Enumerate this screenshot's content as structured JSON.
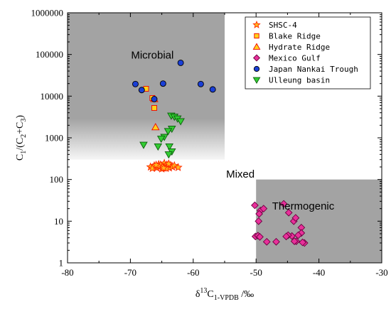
{
  "chart_data": {
    "type": "scatter",
    "xlabel": {
      "delta": "δ",
      "sup": "13",
      "c": "C",
      "sub": "1-VPDB",
      "unit": " /‰"
    },
    "ylabel": {
      "c1": "C",
      "s1": "1",
      "mid": "/(C",
      "s2": "2",
      "plus": "+C",
      "s3": "3",
      "close": ")"
    },
    "xlim": [
      -80,
      -30
    ],
    "ylim": [
      1,
      1000000
    ],
    "y_scale": "log",
    "x_ticks": [
      "-80",
      "-70",
      "-60",
      "-50",
      "-40",
      "-30"
    ],
    "y_ticks": [
      "1",
      "10",
      "100",
      "1000",
      "10000",
      "100000",
      "1000000"
    ],
    "grid": false,
    "legend_position": "top-right",
    "regions": [
      {
        "name": "Microbial",
        "x": [
          -80,
          -55
        ],
        "y": [
          300,
          1000000
        ],
        "color": "#a3a3a3",
        "fade_bottom": true
      },
      {
        "name": "Thermogenic",
        "x": [
          -50,
          -30
        ],
        "y": [
          1,
          100
        ],
        "color": "#a3a3a3",
        "fade_bottom": false
      }
    ],
    "region_labels": [
      {
        "text": "Microbial",
        "x": -66.5,
        "y": 80000
      },
      {
        "text": "Mixed",
        "x": -52.5,
        "y": 110
      },
      {
        "text": "Thermogenic",
        "x": -42.5,
        "y": 19
      }
    ],
    "series": [
      {
        "name": "SHSC-4",
        "marker": "star",
        "fill": "#ffb61e",
        "stroke": "#ff2a00",
        "points": [
          [
            -66.8,
            200
          ],
          [
            -66.2,
            215
          ],
          [
            -65.8,
            190
          ],
          [
            -65.5,
            230
          ],
          [
            -65.3,
            205
          ],
          [
            -65.0,
            180
          ],
          [
            -64.8,
            215
          ],
          [
            -64.6,
            245
          ],
          [
            -64.4,
            195
          ],
          [
            -64.2,
            225
          ],
          [
            -64.0,
            210
          ],
          [
            -63.8,
            190
          ],
          [
            -63.6,
            220
          ],
          [
            -63.3,
            200
          ],
          [
            -63.0,
            215
          ],
          [
            -62.4,
            195
          ],
          [
            -65.2,
            225
          ],
          [
            -64.9,
            198
          ],
          [
            -64.3,
            185
          ],
          [
            -65.6,
            210
          ],
          [
            -66.5,
            185
          ],
          [
            -63.9,
            238
          ],
          [
            -64.7,
            188
          ],
          [
            -65.9,
            222
          ]
        ]
      },
      {
        "name": "Blake Ridge",
        "marker": "square",
        "fill": "#ffd21a",
        "stroke": "#f00000",
        "points": [
          [
            -67.5,
            15000
          ],
          [
            -66.5,
            9000
          ],
          [
            -66.2,
            5200
          ]
        ]
      },
      {
        "name": "Hydrate Ridge",
        "marker": "triangle-up",
        "fill": "#ffd21a",
        "stroke": "#f00000",
        "points": [
          [
            -66.0,
            1800
          ],
          [
            -66.2,
            8500
          ]
        ]
      },
      {
        "name": "Mexico Gulf",
        "marker": "diamond",
        "fill": "#e8309a",
        "stroke": "#6b0040",
        "points": [
          [
            -50.2,
            24
          ],
          [
            -49.3,
            18
          ],
          [
            -48.8,
            20
          ],
          [
            -49.5,
            15
          ],
          [
            -49.6,
            10
          ],
          [
            -50.1,
            4.3
          ],
          [
            -49.7,
            4.5
          ],
          [
            -49.4,
            4.2
          ],
          [
            -48.3,
            3.2
          ],
          [
            -46.8,
            3.2
          ],
          [
            -45.6,
            26
          ],
          [
            -44.8,
            16
          ],
          [
            -44.0,
            10
          ],
          [
            -43.7,
            12
          ],
          [
            -42.8,
            7
          ],
          [
            -42.8,
            5.2
          ],
          [
            -43.3,
            4.6
          ],
          [
            -44.3,
            4.4
          ],
          [
            -44.9,
            4.6
          ],
          [
            -43.6,
            3.3
          ],
          [
            -42.3,
            3.0
          ],
          [
            -43.9,
            3.3
          ],
          [
            -42.6,
            3.1
          ],
          [
            -45.2,
            4.3
          ]
        ]
      },
      {
        "name": "Japan Nankai Trough",
        "marker": "circle",
        "fill": "#1a3fd6",
        "stroke": "#000000",
        "points": [
          [
            -69.2,
            19500
          ],
          [
            -68.2,
            14000
          ],
          [
            -66.2,
            8500
          ],
          [
            -64.8,
            20000
          ],
          [
            -62.0,
            63000
          ],
          [
            -58.8,
            19500
          ],
          [
            -56.9,
            14500
          ]
        ]
      },
      {
        "name": "Ulleung basin",
        "marker": "triangle-down",
        "fill": "#33cc33",
        "stroke": "#0b5e0b",
        "points": [
          [
            -63.5,
            3400
          ],
          [
            -63.0,
            3200
          ],
          [
            -62.5,
            2900
          ],
          [
            -62.0,
            2500
          ],
          [
            -63.4,
            1650
          ],
          [
            -64.0,
            1450
          ],
          [
            -64.6,
            1050
          ],
          [
            -65.1,
            950
          ],
          [
            -67.9,
            680
          ],
          [
            -65.6,
            620
          ],
          [
            -63.8,
            620
          ],
          [
            -63.4,
            470
          ],
          [
            -63.9,
            400
          ]
        ]
      }
    ]
  }
}
